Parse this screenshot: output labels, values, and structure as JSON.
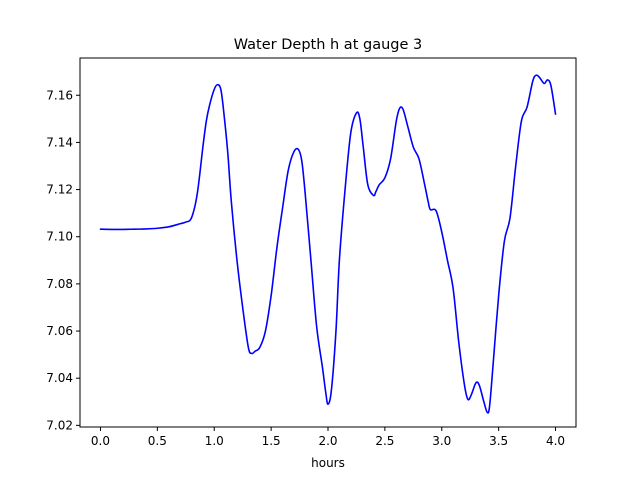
{
  "chart_data": {
    "type": "line",
    "title": "Water Depth h at gauge 3",
    "xlabel": "hours",
    "ylabel": "",
    "xlim": [
      -0.18,
      4.18
    ],
    "ylim": [
      7.0193,
      7.1758
    ],
    "xticks": [
      0.0,
      0.5,
      1.0,
      1.5,
      2.0,
      2.5,
      3.0,
      3.5,
      4.0
    ],
    "xtick_labels": [
      "0.0",
      "0.5",
      "1.0",
      "1.5",
      "2.0",
      "2.5",
      "3.0",
      "3.5",
      "4.0"
    ],
    "yticks": [
      7.02,
      7.04,
      7.06,
      7.08,
      7.1,
      7.12,
      7.14,
      7.16
    ],
    "ytick_labels": [
      "7.02",
      "7.04",
      "7.06",
      "7.08",
      "7.10",
      "7.12",
      "7.14",
      "7.16"
    ],
    "grid": false,
    "legend": "none",
    "series": [
      {
        "color": "#0000ff",
        "x": [
          0.0,
          0.1,
          0.2,
          0.3,
          0.4,
          0.5,
          0.6,
          0.7,
          0.75,
          0.8,
          0.85,
          0.9,
          0.93,
          0.96,
          1.0,
          1.03,
          1.06,
          1.09,
          1.12,
          1.15,
          1.2,
          1.25,
          1.3,
          1.33,
          1.36,
          1.4,
          1.45,
          1.5,
          1.55,
          1.6,
          1.65,
          1.7,
          1.74,
          1.77,
          1.8,
          1.85,
          1.9,
          1.95,
          1.98,
          2.0,
          2.03,
          2.07,
          2.1,
          2.15,
          2.2,
          2.25,
          2.28,
          2.31,
          2.35,
          2.4,
          2.42,
          2.45,
          2.5,
          2.55,
          2.6,
          2.63,
          2.66,
          2.7,
          2.75,
          2.8,
          2.85,
          2.88,
          2.9,
          2.95,
          3.0,
          3.05,
          3.1,
          3.15,
          3.2,
          3.23,
          3.26,
          3.3,
          3.33,
          3.37,
          3.4,
          3.42,
          3.45,
          3.5,
          3.55,
          3.6,
          3.65,
          3.7,
          3.75,
          3.8,
          3.83,
          3.86,
          3.9,
          3.93,
          3.96,
          4.0
        ],
        "y": [
          7.1032,
          7.1031,
          7.1031,
          7.1032,
          7.1033,
          7.1036,
          7.1042,
          7.1055,
          7.1062,
          7.108,
          7.118,
          7.138,
          7.149,
          7.156,
          7.1625,
          7.1645,
          7.162,
          7.15,
          7.135,
          7.115,
          7.09,
          7.07,
          7.053,
          7.0505,
          7.0515,
          7.053,
          7.06,
          7.075,
          7.095,
          7.112,
          7.128,
          7.136,
          7.137,
          7.132,
          7.118,
          7.09,
          7.062,
          7.045,
          7.034,
          7.029,
          7.035,
          7.06,
          7.09,
          7.12,
          7.144,
          7.1525,
          7.15,
          7.138,
          7.122,
          7.1175,
          7.119,
          7.122,
          7.125,
          7.133,
          7.149,
          7.1545,
          7.154,
          7.147,
          7.138,
          7.133,
          7.122,
          7.115,
          7.1115,
          7.111,
          7.102,
          7.09,
          7.078,
          7.055,
          7.037,
          7.031,
          7.033,
          7.038,
          7.037,
          7.03,
          7.0255,
          7.028,
          7.045,
          7.075,
          7.098,
          7.108,
          7.13,
          7.149,
          7.155,
          7.166,
          7.1685,
          7.1675,
          7.165,
          7.1665,
          7.164,
          7.152
        ]
      }
    ]
  }
}
